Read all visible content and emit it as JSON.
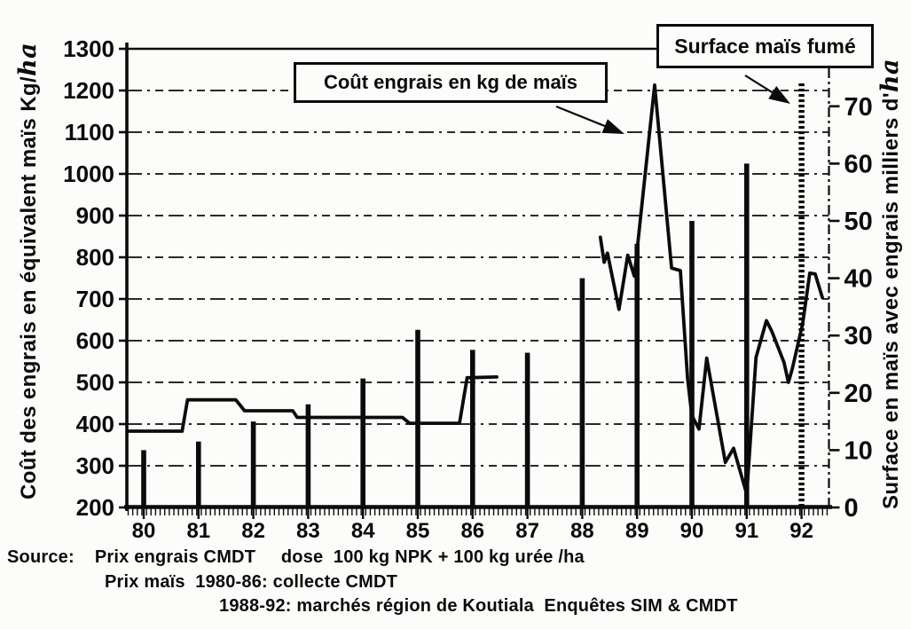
{
  "figure": {
    "callouts": {
      "cost": {
        "label": "Coût engrais en kg de maïs"
      },
      "surface": {
        "label": "Surface maïs fumé"
      }
    },
    "source_lines": [
      "Source:    Prix engrais CMDT     dose  100 kg NPK + 100 kg urée /ha",
      "Prix maïs  1980-86: collecte CMDT",
      "1988-92: marchés région de Koutiala  Enquêtes SIM & CMDT"
    ]
  },
  "chart_data": {
    "type": "combo",
    "title": "",
    "x_tick_labels": [
      "80",
      "81",
      "82",
      "83",
      "84",
      "85",
      "86",
      "87",
      "88",
      "89",
      "90",
      "91",
      "92"
    ],
    "x_years": [
      1980,
      1981,
      1982,
      1983,
      1984,
      1985,
      1986,
      1987,
      1988,
      1989,
      1990,
      1991,
      1992
    ],
    "left_axis": {
      "label": "Coût des engrais en équivalent maïs Kg/ha",
      "label_main": "Coût des engrais en équivalent maïs Kg/",
      "label_script": "ha",
      "ticks": [
        200,
        300,
        400,
        500,
        600,
        700,
        800,
        900,
        1000,
        1100,
        1200,
        1300
      ],
      "range": [
        200,
        1300
      ]
    },
    "right_axis": {
      "label": "Surface en maïs avec engrais milliers d'ha",
      "label_main": "Surface en maïs avec engrais milliers d'",
      "label_script": "ha",
      "ticks": [
        0,
        10,
        20,
        30,
        40,
        50,
        60,
        70
      ],
      "range": [
        0,
        80
      ]
    },
    "gridlines_left_values": [
      300,
      400,
      500,
      600,
      700,
      800,
      900,
      1000,
      1100,
      1200
    ],
    "series": [
      {
        "name": "Surface maïs fumé",
        "type": "bar",
        "axis": "right",
        "unit": "milliers d'ha",
        "values": [
          10,
          11.5,
          15,
          18,
          22.5,
          31,
          27.5,
          27,
          40,
          46,
          50,
          60,
          74
        ],
        "last_bar_style": "dotted"
      },
      {
        "name": "Coût engrais en kg de maïs",
        "type": "line",
        "axis": "left",
        "unit": "kg de maïs équivalent / ha",
        "segments": [
          [
            [
              1979.73,
              383
            ],
            [
              1980.7,
              383
            ],
            [
              1980.8,
              458
            ],
            [
              1981.68,
              458
            ],
            [
              1981.84,
              432
            ],
            [
              1982.72,
              432
            ],
            [
              1982.8,
              416
            ],
            [
              1984.72,
              416
            ],
            [
              1984.85,
              402
            ],
            [
              1985.76,
              402
            ],
            [
              1985.9,
              511
            ],
            [
              1986.44,
              513
            ]
          ],
          [
            [
              1988.33,
              848
            ],
            [
              1988.4,
              788
            ],
            [
              1988.46,
              810
            ],
            [
              1988.67,
              675
            ],
            [
              1988.83,
              805
            ],
            [
              1988.95,
              755
            ],
            [
              1989.32,
              1213
            ],
            [
              1989.63,
              774
            ],
            [
              1989.79,
              768
            ],
            [
              1989.92,
              510
            ],
            [
              1990.0,
              420
            ],
            [
              1990.13,
              388
            ],
            [
              1990.27,
              558
            ],
            [
              1990.61,
              308
            ],
            [
              1990.76,
              342
            ],
            [
              1991.0,
              232
            ],
            [
              1991.17,
              560
            ],
            [
              1991.36,
              648
            ],
            [
              1991.46,
              622
            ],
            [
              1991.68,
              548
            ],
            [
              1991.76,
              500
            ],
            [
              1991.83,
              532
            ],
            [
              1992.02,
              640
            ],
            [
              1992.15,
              762
            ],
            [
              1992.25,
              760
            ],
            [
              1992.38,
              703
            ]
          ]
        ]
      }
    ]
  }
}
